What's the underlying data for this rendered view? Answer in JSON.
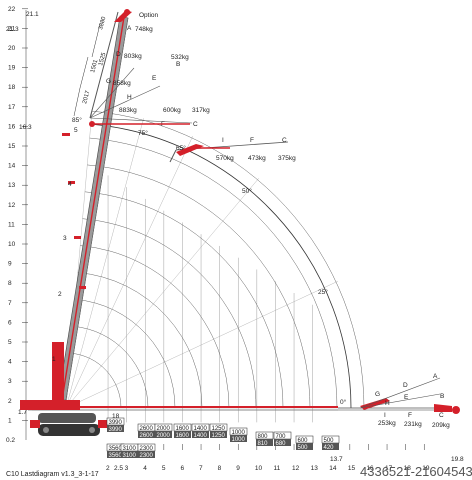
{
  "colors": {
    "boom": "#d4202a",
    "boom_dark": "#8a1016",
    "grid": "#555555",
    "radius_line": "#777777",
    "dim_line": "#333333"
  },
  "y_axis_left": [
    {
      "v": "22",
      "y": 22
    },
    {
      "v": "21",
      "y": 21
    },
    {
      "v": "20",
      "y": 20
    },
    {
      "v": "19",
      "y": 19
    },
    {
      "v": "18",
      "y": 18
    },
    {
      "v": "17",
      "y": 17
    },
    {
      "v": "16",
      "y": 16
    },
    {
      "v": "15",
      "y": 15
    },
    {
      "v": "14",
      "y": 14
    },
    {
      "v": "13",
      "y": 13
    },
    {
      "v": "12",
      "y": 12
    },
    {
      "v": "11",
      "y": 11
    },
    {
      "v": "10",
      "y": 10
    },
    {
      "v": "9",
      "y": 9
    },
    {
      "v": "8",
      "y": 8
    },
    {
      "v": "7",
      "y": 7
    },
    {
      "v": "6",
      "y": 6
    },
    {
      "v": "5",
      "y": 5
    },
    {
      "v": "4",
      "y": 4
    },
    {
      "v": "3",
      "y": 3
    },
    {
      "v": "2",
      "y": 2
    },
    {
      "v": "1",
      "y": 1
    }
  ],
  "y_markers": {
    "top_a": "21.1",
    "top_b": "21.3",
    "mid": "16.3",
    "low": "1.7",
    "bottom": "0.2"
  },
  "x_axis_bottom": [
    "2",
    "3",
    "4",
    "5",
    "6",
    "7",
    "8",
    "9",
    "10",
    "11",
    "12",
    "13",
    "14",
    "15",
    "16",
    "17",
    "18",
    "19"
  ],
  "x_markers": {
    "x25": "2.5",
    "x137": "13.7",
    "x198": "19.8"
  },
  "top_option_label": "Option",
  "point_labels": {
    "A": "A",
    "B": "B",
    "C": "C",
    "D": "D",
    "E": "E",
    "F": "F",
    "G": "G",
    "H": "H",
    "I": "I"
  },
  "top_loads": {
    "A": "748kg",
    "D": "803kg",
    "G": "858kg",
    "H": "883kg",
    "I": "600kg",
    "C": "317kg",
    "B": "532kg"
  },
  "segment_lengths": {
    "s1": "3880",
    "s2": "1501",
    "s3": "1525",
    "s4": "2017"
  },
  "boom_numbers": [
    "1",
    "2",
    "3",
    "4",
    "5"
  ],
  "angles": {
    "a85": "85°",
    "a75": "75°",
    "a65": "65°",
    "a50": "50°",
    "a25": "25°",
    "a0": "0°"
  },
  "jib65_loads": {
    "I": "570kg",
    "F": "473kg",
    "C": "375kg"
  },
  "jib0_loads": {
    "I": "253kg",
    "F": "231kg",
    "C": "209kg"
  },
  "capacity_boxes": [
    {
      "top": "3990",
      "bot": "3990"
    },
    {
      "top": "3560",
      "bot": "3560"
    },
    {
      "top": "3100",
      "bot": "3100"
    },
    {
      "top": "2600",
      "bot": "2600"
    },
    {
      "top": "2300",
      "bot": "2300"
    },
    {
      "top": "2000",
      "bot": "2000"
    },
    {
      "top": "1600",
      "bot": "1600"
    },
    {
      "top": "1400",
      "bot": "1400"
    },
    {
      "top": "1250",
      "bot": "1250"
    },
    {
      "top": "1000",
      "bot": "1000"
    },
    {
      "top": "800",
      "bot": "810"
    },
    {
      "top": "700",
      "bot": "680"
    },
    {
      "top": "600",
      "bot": "500"
    },
    {
      "top": "500",
      "bot": "420"
    }
  ],
  "footer_title": "C10 Lastdiagram v1.3_3-1-17",
  "watermark": "4336521-21604543",
  "foot_values": {
    "v18": "18",
    "v1_left": "1"
  }
}
